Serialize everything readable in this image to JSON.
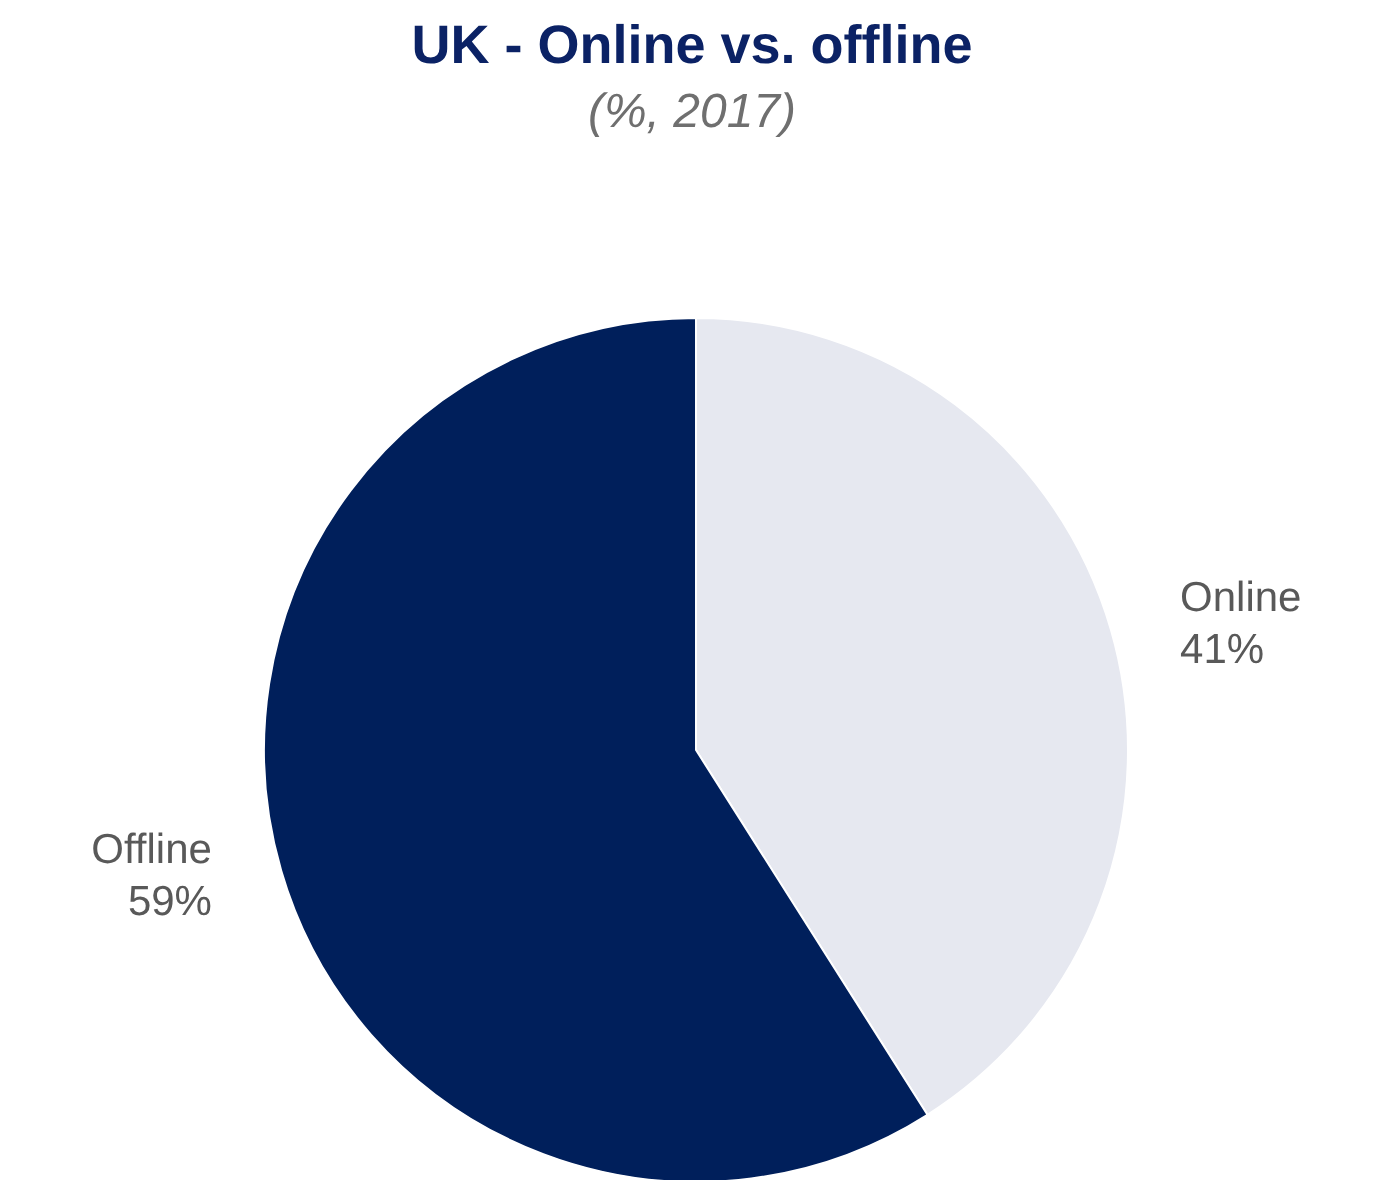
{
  "chart_data": {
    "type": "pie",
    "title": "UK - Online vs. offline",
    "subtitle": "(%, 2017)",
    "categories": [
      "Online",
      "Offline"
    ],
    "values": [
      41,
      59
    ],
    "value_labels": [
      "41%",
      "59%"
    ],
    "colors": [
      "#e6e8f0",
      "#001f5b"
    ]
  }
}
